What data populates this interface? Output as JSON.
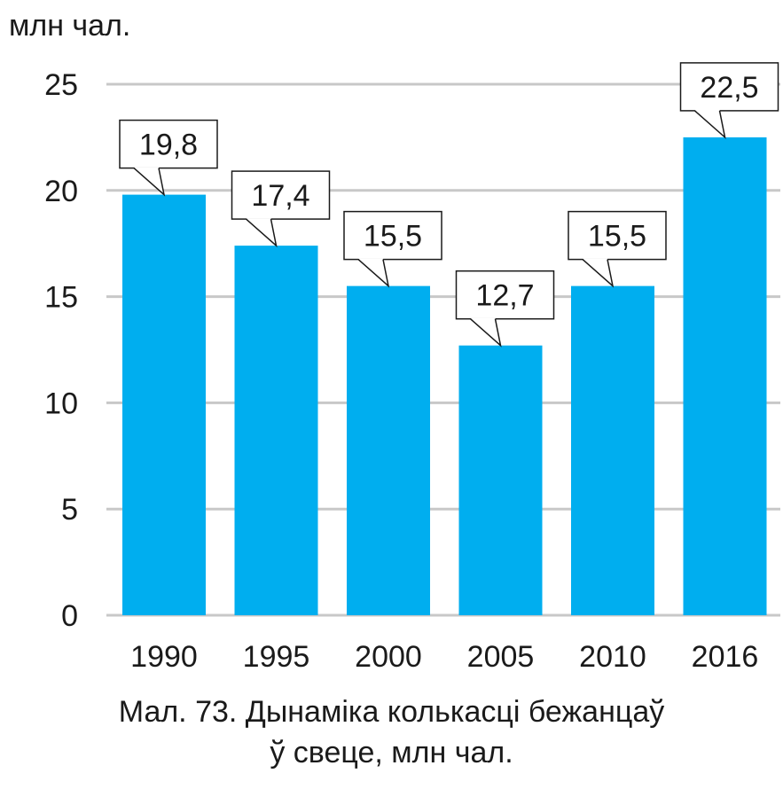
{
  "chart_data": {
    "type": "bar",
    "unit_label": "млн чал.",
    "categories": [
      "1990",
      "1995",
      "2000",
      "2005",
      "2010",
      "2016"
    ],
    "values": [
      19.8,
      17.4,
      15.5,
      12.7,
      15.5,
      22.5
    ],
    "data_labels": [
      "19,8",
      "17,4",
      "15,5",
      "12,7",
      "15,5",
      "22,5"
    ],
    "yticks": [
      0,
      5,
      10,
      15,
      20,
      25
    ],
    "ylim": [
      0,
      25
    ],
    "grid": true,
    "bar_color": "#00aeef",
    "grid_color": "#c8c8c8"
  },
  "caption": {
    "line1": "Мал. 73. Дынаміка колькасці бежанцаў",
    "line2": "ў свеце, млн чал."
  }
}
